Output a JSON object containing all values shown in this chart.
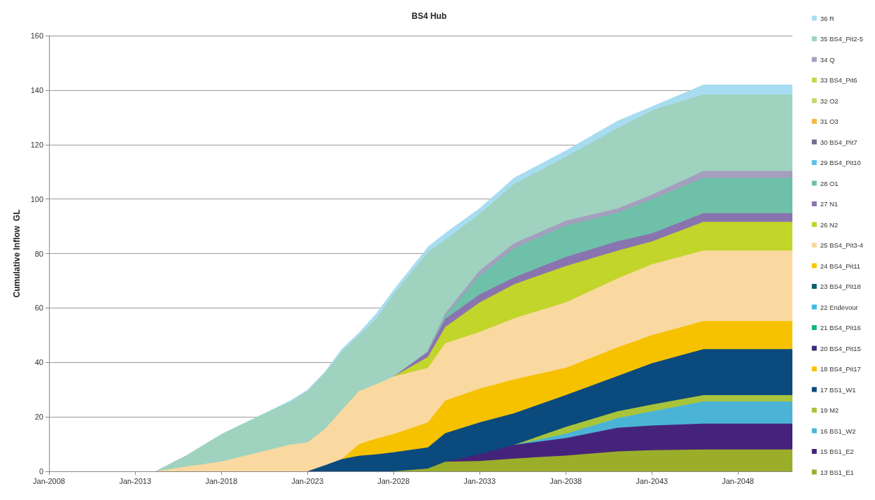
{
  "chart_data": {
    "type": "area",
    "stacked": true,
    "title": "BS4 Hub",
    "ylabel": "Cumulative Inflow  GL",
    "x": [
      "2008-01",
      "2014-03",
      "2016-01",
      "2018-01",
      "2020-01",
      "2022-01",
      "2023-01",
      "2024-01",
      "2025-01",
      "2026-01",
      "2027-01",
      "2028-01",
      "2030-01",
      "2031-01",
      "2033-01",
      "2035-01",
      "2038-01",
      "2041-01",
      "2043-01",
      "2046-01",
      "2051-03"
    ],
    "xlim": [
      "2008-01",
      "2051-03"
    ],
    "xticks": [
      {
        "value": "2008-01",
        "label": "Jan-2008"
      },
      {
        "value": "2013-01",
        "label": "Jan-2013"
      },
      {
        "value": "2018-01",
        "label": "Jan-2018"
      },
      {
        "value": "2023-01",
        "label": "Jan-2023"
      },
      {
        "value": "2028-01",
        "label": "Jan-2028"
      },
      {
        "value": "2033-01",
        "label": "Jan-2033"
      },
      {
        "value": "2038-01",
        "label": "Jan-2038"
      },
      {
        "value": "2043-01",
        "label": "Jan-2043"
      },
      {
        "value": "2048-01",
        "label": "Jan-2048"
      }
    ],
    "ylim": [
      0,
      160
    ],
    "yticks": [
      0,
      20,
      40,
      60,
      80,
      100,
      120,
      140,
      160
    ],
    "grid": "y",
    "legend": "right",
    "series": [
      {
        "name": "13 BS1_E1",
        "color": "#9aae2a",
        "values": [
          0,
          0,
          0,
          0,
          0,
          0,
          0,
          0,
          0,
          0,
          0,
          0,
          1,
          3.5,
          3.8,
          4.7,
          5.8,
          7.3,
          7.8,
          8,
          8
        ]
      },
      {
        "name": "15 BS1_E2",
        "color": "#46237a",
        "values": [
          null,
          null,
          null,
          null,
          null,
          null,
          null,
          null,
          null,
          null,
          null,
          null,
          null,
          0,
          2.5,
          5,
          6.4,
          8.7,
          9,
          9.5,
          9.5
        ]
      },
      {
        "name": "16 BS1_W2",
        "color": "#4bb4d6",
        "values": [
          null,
          null,
          null,
          null,
          null,
          null,
          null,
          null,
          null,
          null,
          null,
          null,
          null,
          null,
          null,
          0,
          1.6,
          3.5,
          5.2,
          8.2,
          8.2
        ]
      },
      {
        "name": "19 M2",
        "color": "#a8c43a",
        "values": [
          null,
          null,
          null,
          null,
          null,
          null,
          null,
          null,
          null,
          null,
          null,
          null,
          null,
          null,
          null,
          0,
          2.5,
          2.5,
          2.5,
          2.3,
          2.3
        ]
      },
      {
        "name": "17 BS1_W1",
        "color": "#0b4a7d",
        "values": [
          null,
          null,
          null,
          null,
          null,
          null,
          0,
          2.2,
          4.5,
          5.7,
          6.2,
          7,
          7.8,
          10.5,
          11.7,
          11.6,
          11.7,
          13,
          15.2,
          16.9,
          16.9
        ]
      },
      {
        "name": "18 BS4_Pit17",
        "color": "#f6c200",
        "values": [
          null,
          null,
          null,
          null,
          null,
          null,
          null,
          null,
          0,
          4.3,
          5.8,
          6.7,
          9.2,
          12,
          12.4,
          12.5,
          10,
          10.5,
          10.3,
          10.3,
          10.3
        ]
      },
      {
        "name": "20 BS4_Pit15",
        "color": "#3d2a7a",
        "values": [
          null,
          null,
          null,
          null,
          null,
          null,
          null,
          null,
          null,
          null,
          null,
          null,
          null,
          null,
          null,
          null,
          null,
          null,
          null,
          null,
          null
        ]
      },
      {
        "name": "21 BS4_Pit16",
        "color": "#13b48d",
        "values": [
          null,
          null,
          null,
          null,
          null,
          null,
          null,
          null,
          null,
          null,
          null,
          null,
          null,
          null,
          null,
          null,
          null,
          null,
          null,
          null,
          null
        ]
      },
      {
        "name": "22 Endevour",
        "color": "#3fb8e0",
        "values": [
          null,
          null,
          null,
          null,
          null,
          null,
          null,
          null,
          null,
          null,
          null,
          null,
          null,
          null,
          null,
          null,
          null,
          null,
          null,
          null,
          null
        ]
      },
      {
        "name": "23 BS4_Pit18",
        "color": "#0d5e6e",
        "values": [
          null,
          null,
          null,
          null,
          null,
          null,
          null,
          null,
          null,
          null,
          null,
          null,
          null,
          null,
          null,
          null,
          null,
          null,
          null,
          null,
          null
        ]
      },
      {
        "name": "24 BS4_Pit11",
        "color": "#f6c800",
        "values": [
          null,
          null,
          null,
          null,
          null,
          null,
          null,
          null,
          null,
          null,
          null,
          null,
          null,
          null,
          null,
          null,
          null,
          null,
          null,
          null,
          null
        ]
      },
      {
        "name": "25 BS4_Pit3-4",
        "color": "#fad9a0",
        "values": [
          0,
          0,
          1.8,
          3.6,
          6.7,
          9.8,
          10.6,
          13.3,
          18,
          19.5,
          20,
          21.1,
          20,
          21,
          20.8,
          22.4,
          24,
          25.3,
          26,
          25.9,
          25.9
        ]
      },
      {
        "name": "26 N2",
        "color": "#c2d52a",
        "values": [
          null,
          null,
          null,
          null,
          null,
          null,
          null,
          null,
          null,
          null,
          null,
          0,
          4,
          6,
          10.8,
          12.5,
          13.4,
          10.2,
          8.4,
          10.5,
          10.5
        ]
      },
      {
        "name": "27 N1",
        "color": "#8a74b0",
        "values": [
          null,
          null,
          null,
          null,
          null,
          null,
          null,
          null,
          null,
          null,
          null,
          0,
          2,
          3,
          3,
          2.5,
          3.3,
          3.5,
          3,
          3.2,
          3.2
        ]
      },
      {
        "name": "28 O1",
        "color": "#6fc0a8",
        "values": [
          null,
          null,
          null,
          null,
          null,
          null,
          null,
          null,
          null,
          null,
          null,
          null,
          0,
          1,
          7,
          10.8,
          11.6,
          10.5,
          12.5,
          13,
          13
        ]
      },
      {
        "name": "29 BS4_Pit10",
        "color": "#5bc0eb",
        "values": [
          null,
          null,
          null,
          null,
          null,
          null,
          null,
          null,
          null,
          null,
          null,
          null,
          null,
          null,
          null,
          null,
          null,
          null,
          null,
          null,
          null
        ]
      },
      {
        "name": "30 BS4_Pit7",
        "color": "#6f6f8f",
        "values": [
          null,
          null,
          null,
          null,
          null,
          null,
          null,
          null,
          null,
          null,
          null,
          null,
          null,
          null,
          null,
          null,
          null,
          null,
          null,
          null,
          null
        ]
      },
      {
        "name": "31 O3",
        "color": "#f5b942",
        "values": [
          null,
          null,
          null,
          null,
          null,
          null,
          null,
          null,
          null,
          null,
          null,
          null,
          null,
          null,
          null,
          null,
          null,
          null,
          null,
          null,
          null
        ]
      },
      {
        "name": "32 O2",
        "color": "#c0d96e",
        "values": [
          null,
          null,
          null,
          null,
          null,
          null,
          null,
          null,
          null,
          null,
          null,
          null,
          null,
          null,
          null,
          null,
          null,
          null,
          null,
          null,
          null
        ]
      },
      {
        "name": "33 BS4_Pit6",
        "color": "#c6d84a",
        "values": [
          null,
          null,
          null,
          null,
          null,
          null,
          null,
          null,
          null,
          null,
          null,
          null,
          null,
          null,
          null,
          null,
          null,
          null,
          null,
          null,
          null
        ]
      },
      {
        "name": "34 Q",
        "color": "#a49ebf",
        "values": [
          null,
          null,
          null,
          null,
          null,
          null,
          null,
          null,
          null,
          null,
          null,
          null,
          0.5,
          1,
          1.7,
          1.7,
          1.7,
          1.5,
          1.7,
          2.5,
          2.5
        ]
      },
      {
        "name": "35 BS4_Pit2-5",
        "color": "#9fd2bf",
        "values": [
          0,
          0,
          4.2,
          10.1,
          13.1,
          15.7,
          18.8,
          20.5,
          21.5,
          20.5,
          24,
          30.2,
          36,
          27,
          20.8,
          21.8,
          23.5,
          29.5,
          30.9,
          28.1,
          28.1
        ]
      },
      {
        "name": "36 R",
        "color": "#a8dcf0",
        "values": [
          null,
          null,
          null,
          null,
          0,
          0.5,
          0.5,
          0.5,
          1,
          1,
          2,
          1.6,
          2,
          2.5,
          2.1,
          2.3,
          2.3,
          2.7,
          1.5,
          3.6,
          3.6
        ]
      }
    ]
  }
}
